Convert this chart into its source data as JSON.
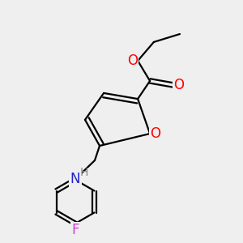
{
  "bg_color": "#efefef",
  "atom_colors": {
    "C": "#000000",
    "O": "#ff0000",
    "N": "#2222cc",
    "F": "#cc44cc",
    "H": "#888888"
  },
  "bond_color": "#000000",
  "bond_width": 1.6,
  "font_size_atoms": 12,
  "font_size_H": 10,
  "font_size_F": 12
}
